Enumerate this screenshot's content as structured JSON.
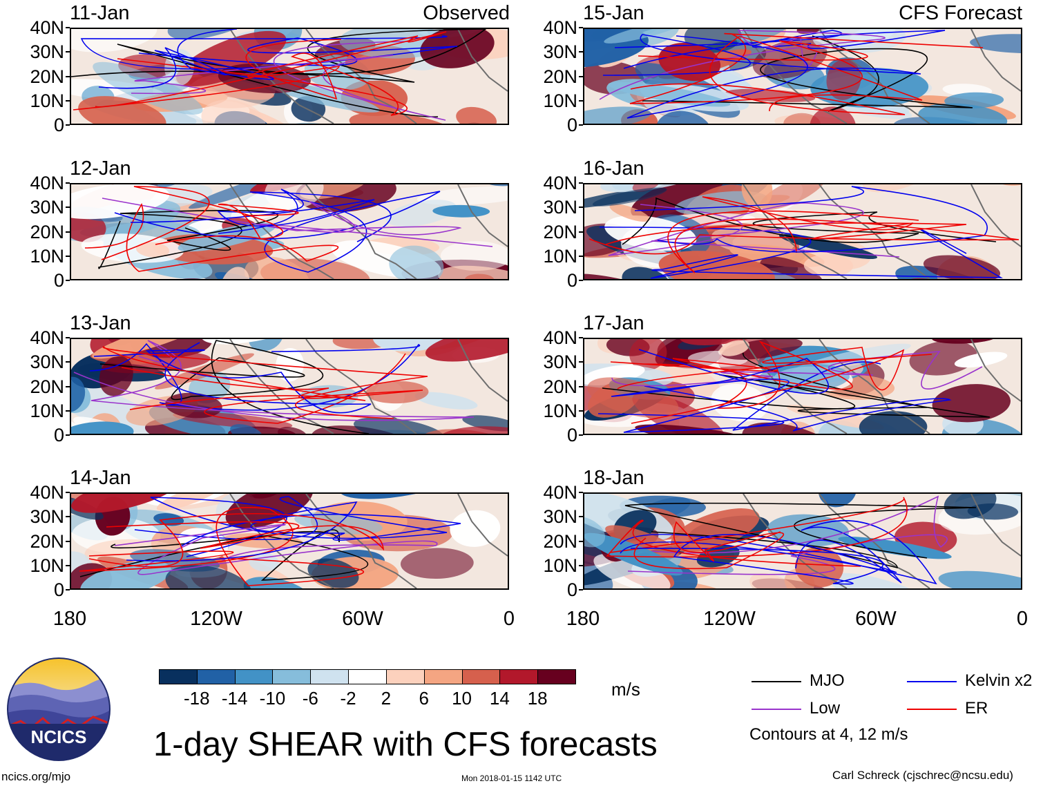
{
  "title": "1-day SHEAR with CFS forecasts",
  "headers": {
    "observed": "Observed",
    "forecast": "CFS Forecast"
  },
  "panels": {
    "left": [
      {
        "date": "11-Jan"
      },
      {
        "date": "12-Jan"
      },
      {
        "date": "13-Jan"
      },
      {
        "date": "14-Jan"
      }
    ],
    "right": [
      {
        "date": "15-Jan"
      },
      {
        "date": "16-Jan"
      },
      {
        "date": "17-Jan"
      },
      {
        "date": "18-Jan"
      }
    ]
  },
  "lat_labels": [
    "40N",
    "30N",
    "20N",
    "10N",
    "0"
  ],
  "lon_labels": [
    "180",
    "120W",
    "60W",
    "0"
  ],
  "colorbar": {
    "unit": "m/s",
    "levels": [
      "-18",
      "-14",
      "-10",
      "-6",
      "-2",
      "2",
      "6",
      "10",
      "14",
      "18"
    ],
    "colors": [
      "#08305e",
      "#2161a6",
      "#4292c6",
      "#86bddb",
      "#cfe2ef",
      "#ffffff",
      "#fcd1bd",
      "#f4a582",
      "#d6604d",
      "#b2182b",
      "#67001f"
    ]
  },
  "legend": {
    "items": [
      {
        "label": "MJO",
        "color": "#000000"
      },
      {
        "label": "Kelvin x2",
        "color": "#0000ee"
      },
      {
        "label": "Low",
        "color": "#9933cc"
      },
      {
        "label": "ER",
        "color": "#ee0000"
      }
    ],
    "note": "Contours at 4, 12 m/s"
  },
  "logo": {
    "text": "NCICS"
  },
  "footer": {
    "url": "ncics.org/mjo",
    "timestamp": "Mon 2018-01-15 1142 UTC",
    "credit": "Carl Schreck (cjschrec@ncsu.edu)"
  }
}
